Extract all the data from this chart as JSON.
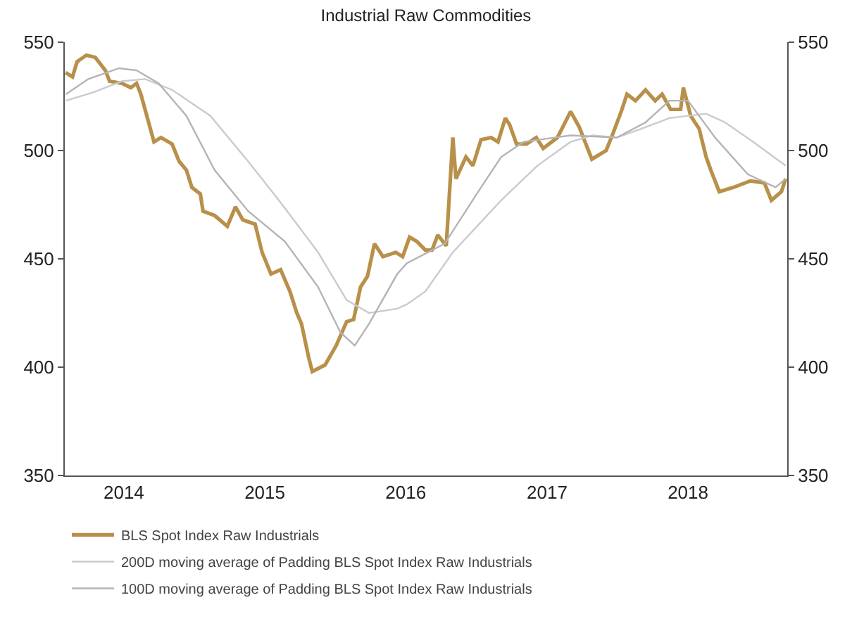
{
  "chart_data": {
    "type": "line",
    "title": "Industrial Raw Commodities",
    "xlim": [
      "2013-08-01",
      "2018-09-15"
    ],
    "xticks": [
      "2014",
      "2015",
      "2016",
      "2017",
      "2018"
    ],
    "ylim": [
      350,
      550
    ],
    "yticks": [
      350,
      400,
      450,
      500,
      550
    ],
    "y2lim": [
      350,
      550
    ],
    "y2ticks": [
      350,
      400,
      450,
      500,
      550
    ],
    "legend": "bottom left",
    "marker": "none",
    "line_style": "solid",
    "series": [
      {
        "name": "BLS Spot Index Raw Industrials",
        "color": "#b8904a",
        "x": [
          "2013-08-03",
          "2013-08-21",
          "2013-09-02",
          "2013-09-26",
          "2013-10-19",
          "2013-11-14",
          "2013-11-25",
          "2013-12-27",
          "2014-01-19",
          "2014-02-03",
          "2014-02-14",
          "2014-03-20",
          "2014-04-07",
          "2014-05-06",
          "2014-05-24",
          "2014-06-12",
          "2014-06-26",
          "2014-07-18",
          "2014-07-25",
          "2014-08-24",
          "2014-09-26",
          "2014-10-17",
          "2014-11-05",
          "2014-12-07",
          "2014-12-25",
          "2015-01-17",
          "2015-02-11",
          "2015-03-07",
          "2015-03-25",
          "2015-04-06",
          "2015-04-24",
          "2015-05-04",
          "2015-06-06",
          "2015-07-05",
          "2015-08-01",
          "2015-08-19",
          "2015-09-06",
          "2015-09-24",
          "2015-10-12",
          "2015-11-03",
          "2015-12-06",
          "2015-12-24",
          "2016-01-11",
          "2016-01-30",
          "2016-02-21",
          "2016-03-09",
          "2016-03-24",
          "2016-04-15",
          "2016-05-02",
          "2016-05-10",
          "2016-06-05",
          "2016-06-23",
          "2016-07-14",
          "2016-08-09",
          "2016-08-27",
          "2016-09-15",
          "2016-09-26",
          "2016-10-14",
          "2016-11-09",
          "2016-12-04",
          "2016-12-22",
          "2017-01-28",
          "2017-03-03",
          "2017-03-25",
          "2017-04-27",
          "2017-06-03",
          "2017-06-21",
          "2017-07-12",
          "2017-07-27",
          "2017-08-18",
          "2017-09-13",
          "2017-10-08",
          "2017-10-26",
          "2017-11-17",
          "2017-12-13",
          "2017-12-20",
          "2018-01-08",
          "2018-01-30",
          "2018-02-17",
          "2018-03-01",
          "2018-03-23",
          "2018-04-29",
          "2018-06-12",
          "2018-07-18",
          "2018-08-05",
          "2018-08-31",
          "2018-09-11"
        ],
        "values": [
          536,
          534,
          541,
          544,
          543,
          537,
          532,
          531,
          529,
          531,
          526,
          504,
          506,
          503,
          495,
          491,
          483,
          480,
          472,
          470,
          465,
          474,
          468,
          466,
          453,
          443,
          445,
          435,
          425,
          420,
          405,
          398,
          401,
          410,
          421,
          422,
          437,
          442,
          457,
          451,
          453,
          451,
          460,
          458,
          454,
          454,
          461,
          456,
          506,
          487,
          497,
          493,
          505,
          506,
          504,
          515,
          512,
          503,
          503,
          506,
          501,
          506,
          518,
          511,
          496,
          500,
          508,
          518,
          526,
          523,
          528,
          523,
          526,
          519,
          519,
          529,
          516,
          510,
          497,
          491,
          481,
          483,
          486,
          485,
          477,
          481,
          487
        ]
      },
      {
        "name": "200D moving average of Padding BLS Spot Index Raw Industrials",
        "color": "#c9cbd3",
        "x": [
          "2013-08-04",
          "2013-10-16",
          "2013-12-27",
          "2014-02-25",
          "2014-05-06",
          "2014-08-13",
          "2014-11-19",
          "2015-02-11",
          "2015-05-19",
          "2015-08-01",
          "2015-09-28",
          "2015-12-10",
          "2016-01-04",
          "2016-02-21",
          "2016-05-02",
          "2016-09-04",
          "2016-12-07",
          "2017-03-03",
          "2017-04-30",
          "2017-07-01",
          "2017-09-02",
          "2017-11-14",
          "2018-02-17",
          "2018-04-07",
          "2018-06-19",
          "2018-09-11"
        ],
        "values": [
          523,
          527,
          532,
          533,
          528,
          516,
          495,
          476,
          453,
          431,
          425,
          427,
          429,
          435,
          453,
          477,
          493,
          504,
          507,
          506,
          510,
          515,
          517,
          513,
          504,
          493
        ]
      },
      {
        "name": "100D moving average of Padding BLS Spot Index Raw Industrials",
        "color": "#b4b4b4",
        "x": [
          "2013-08-04",
          "2013-10-01",
          "2013-12-20",
          "2014-02-03",
          "2014-04-01",
          "2014-06-12",
          "2014-08-24",
          "2014-11-19",
          "2015-02-22",
          "2015-05-19",
          "2015-07-16",
          "2015-08-22",
          "2015-09-28",
          "2015-12-10",
          "2016-01-04",
          "2016-04-11",
          "2016-07-03",
          "2016-09-04",
          "2016-11-01",
          "2017-03-03",
          "2017-07-01",
          "2017-09-13",
          "2017-11-14",
          "2018-01-01",
          "2018-03-12",
          "2018-06-05",
          "2018-08-16",
          "2018-09-11"
        ],
        "values": [
          526,
          533,
          538,
          537,
          531,
          516,
          491,
          472,
          458,
          437,
          416,
          410,
          420,
          443,
          448,
          457,
          480,
          497,
          504,
          507,
          506,
          513,
          523,
          523,
          506,
          489,
          483,
          487
        ]
      }
    ]
  }
}
